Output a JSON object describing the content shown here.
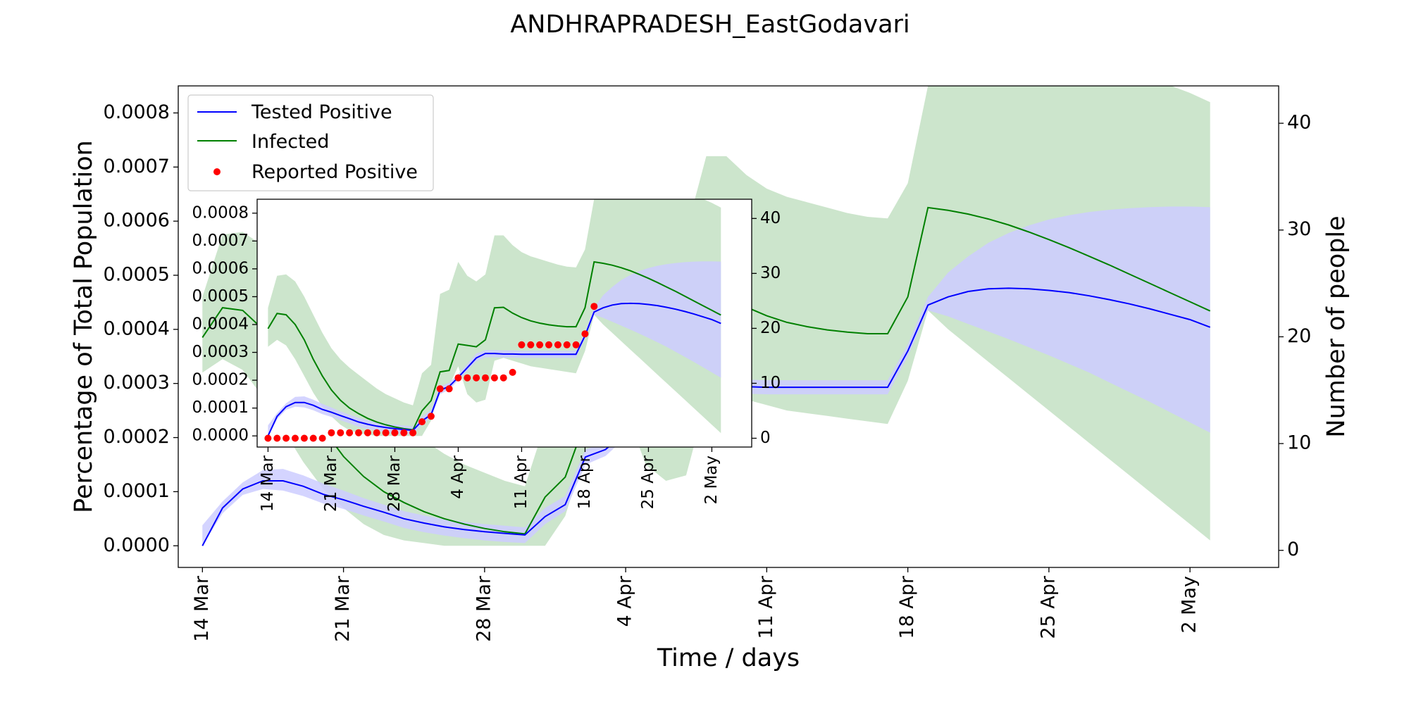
{
  "title": "ANDHRAPRADESH_EastGodavari",
  "chart_data": {
    "type": "line",
    "xlabel": "Time / days",
    "ylabel": "Percentage of Total Population",
    "y2label": "Number of people",
    "x_ticks": [
      "14 Mar",
      "21 Mar",
      "28 Mar",
      "4 Apr",
      "11 Apr",
      "18 Apr",
      "25 Apr",
      "2 May"
    ],
    "y_ticks": [
      "0.0000",
      "0.0001",
      "0.0002",
      "0.0003",
      "0.0004",
      "0.0005",
      "0.0006",
      "0.0007",
      "0.0008"
    ],
    "y2_ticks": [
      "0",
      "10",
      "20",
      "30",
      "40"
    ],
    "x_range_days": [
      -1.2,
      53.4
    ],
    "ylim": [
      -4e-05,
      0.00085
    ],
    "y2lim": [
      -1.6,
      43.5
    ],
    "inset_ylim": [
      -4e-05,
      0.00085
    ],
    "inset_y2lim": [
      -1.6,
      43.5
    ],
    "legend": {
      "position": "top-left",
      "entries": [
        "Tested Positive",
        "Infected",
        "Reported Positive"
      ]
    },
    "colors": {
      "tested": "#0000ff",
      "tested_band": "#ccccff",
      "infected": "#008000",
      "infected_band": "#cce5cc",
      "overlap": "#a3b5cc",
      "reported": "#ff0000"
    },
    "series": [
      {
        "name": "Tested Positive",
        "x": [
          0,
          1,
          2,
          3,
          4,
          5,
          6,
          7,
          8,
          9,
          10,
          11,
          12,
          13,
          14,
          15,
          16,
          17,
          18,
          19,
          20,
          21,
          22,
          23,
          24,
          25,
          26,
          27,
          28,
          29,
          30,
          31,
          32,
          33,
          34,
          35,
          36,
          37,
          38,
          39,
          40,
          41,
          42,
          43,
          44,
          45,
          46,
          47,
          48,
          49,
          50
        ],
        "y": [
          0.0,
          7e-05,
          0.000105,
          0.00012,
          0.00012,
          0.00011,
          9.5e-05,
          8.5e-05,
          7.3e-05,
          6.2e-05,
          5e-05,
          4.2e-05,
          3.5e-05,
          3e-05,
          2.6e-05,
          2.3e-05,
          2e-05,
          5.4e-05,
          7.6e-05,
          0.000164,
          0.000178,
          0.00021,
          0.000245,
          0.00028,
          0.000296,
          0.000296,
          0.000294,
          0.000294,
          0.000293,
          0.000293,
          0.000293,
          0.000293,
          0.000293,
          0.000293,
          0.000293,
          0.00036,
          0.000445,
          0.00046,
          0.00047,
          0.000475,
          0.000476,
          0.000475,
          0.000472,
          0.000468,
          0.000462,
          0.000455,
          0.000447,
          0.000438,
          0.000428,
          0.000418,
          0.000404
        ],
        "band_low": [
          0.0,
          6e-05,
          9.4e-05,
          0.000105,
          0.000102,
          9.2e-05,
          7.8e-05,
          6.8e-05,
          5.6e-05,
          4.5e-05,
          3.3e-05,
          2.5e-05,
          1.9e-05,
          1.4e-05,
          1e-05,
          7e-06,
          5e-06,
          4e-05,
          6.4e-05,
          0.00015,
          0.000166,
          0.0002,
          0.000235,
          0.000268,
          0.000282,
          0.000282,
          0.000281,
          0.000281,
          0.00028,
          0.00028,
          0.00028,
          0.00028,
          0.00028,
          0.00028,
          0.00028,
          0.00035,
          0.000435,
          0.000424,
          0.00041,
          0.000396,
          0.000382,
          0.000367,
          0.000352,
          0.000336,
          0.00032,
          0.000302,
          0.000284,
          0.000266,
          0.000247,
          0.000228,
          0.000209
        ],
        "band_high": [
          3.8e-05,
          8.2e-05,
          0.000117,
          0.00014,
          0.000142,
          0.00013,
          0.000115,
          0.000102,
          8.8e-05,
          7.6e-05,
          6.4e-05,
          5.6e-05,
          4.9e-05,
          4.4e-05,
          4e-05,
          3.7e-05,
          3.4e-05,
          7e-05,
          9.2e-05,
          0.000178,
          0.000191,
          0.000222,
          0.000258,
          0.000296,
          0.000308,
          0.000308,
          0.000307,
          0.000307,
          0.000306,
          0.000306,
          0.000306,
          0.000306,
          0.000306,
          0.000306,
          0.000306,
          0.000372,
          0.00046,
          0.000505,
          0.000535,
          0.00056,
          0.000578,
          0.000592,
          0.000603,
          0.000611,
          0.000617,
          0.000621,
          0.000624,
          0.000626,
          0.000627,
          0.000627,
          0.000626
        ]
      },
      {
        "name": "Infected",
        "x": [
          0,
          1,
          2,
          3,
          4,
          5,
          6,
          7,
          8,
          9,
          10,
          11,
          12,
          13,
          14,
          15,
          16,
          17,
          18,
          19,
          20,
          21,
          22,
          23,
          24,
          25,
          26,
          27,
          28,
          29,
          30,
          31,
          32,
          33,
          34,
          35,
          36,
          37,
          38,
          39,
          40,
          41,
          42,
          43,
          44,
          45,
          46,
          47,
          48,
          49,
          50
        ],
        "y": [
          0.000385,
          0.00044,
          0.000435,
          0.0004,
          0.000345,
          0.000275,
          0.000215,
          0.000165,
          0.000128,
          0.0001,
          8e-05,
          6.3e-05,
          5e-05,
          4e-05,
          3.2e-05,
          2.6e-05,
          2.2e-05,
          9e-05,
          0.000127,
          0.00023,
          0.000235,
          0.00033,
          0.000325,
          0.00032,
          0.000345,
          0.00046,
          0.000462,
          0.000441,
          0.000425,
          0.000413,
          0.000405,
          0.000399,
          0.000395,
          0.000392,
          0.000392,
          0.00046,
          0.000625,
          0.00062,
          0.000613,
          0.000604,
          0.000593,
          0.00058,
          0.000566,
          0.000551,
          0.000535,
          0.000519,
          0.000502,
          0.000485,
          0.000468,
          0.000451,
          0.000434
        ],
        "band_low": [
          0.00032,
          0.000345,
          0.000325,
          0.000275,
          0.000215,
          0.000155,
          0.000105,
          7e-05,
          4e-05,
          2e-05,
          1e-05,
          5e-06,
          0.0,
          0.0,
          0.0,
          0.0,
          0.0,
          0.0,
          5.5e-05,
          0.000175,
          0.00018,
          0.00025,
          0.00015,
          0.00012,
          0.00013,
          0.00027,
          0.00028,
          0.00027,
          0.00026,
          0.00025,
          0.000245,
          0.00024,
          0.000235,
          0.00023,
          0.000225,
          0.000305,
          0.000435,
          0.0004,
          0.00037,
          0.00034,
          0.00031,
          0.00028,
          0.00025,
          0.00022,
          0.00019,
          0.00016,
          0.00013,
          0.0001,
          7e-05,
          4e-05,
          1e-05
        ],
        "band_high": [
          0.00046,
          0.000575,
          0.00058,
          0.000555,
          0.0005,
          0.000435,
          0.00037,
          0.000315,
          0.000275,
          0.000245,
          0.00022,
          0.000195,
          0.00017,
          0.00015,
          0.000135,
          0.00012,
          0.00011,
          0.000225,
          0.000255,
          0.00051,
          0.000525,
          0.000625,
          0.000575,
          0.000555,
          0.00058,
          0.00072,
          0.00072,
          0.000685,
          0.00066,
          0.000645,
          0.000635,
          0.000625,
          0.000615,
          0.000608,
          0.000605,
          0.00067,
          0.00085,
          0.000868,
          0.00088,
          0.000887,
          0.000891,
          0.000893,
          0.000893,
          0.000891,
          0.000887,
          0.000881,
          0.000873,
          0.000863,
          0.000851,
          0.000837,
          0.00082
        ]
      },
      {
        "name": "Reported Positive",
        "type": "scatter",
        "x": [
          0,
          1,
          2,
          3,
          4,
          5,
          6,
          7,
          8,
          9,
          10,
          11,
          12,
          13,
          14,
          15,
          16,
          17,
          18,
          19,
          20,
          21,
          22,
          23,
          24,
          25,
          26,
          27,
          28,
          29,
          30,
          31,
          32,
          33,
          34,
          35,
          36
        ],
        "y": [
          0,
          0,
          0,
          0,
          0,
          0,
          0,
          1,
          1,
          1,
          1,
          1,
          1,
          1,
          1,
          1,
          1,
          3,
          4,
          9,
          9,
          11,
          11,
          11,
          11,
          11,
          11,
          12,
          17,
          17,
          17,
          17,
          17,
          17,
          17,
          19,
          24
        ]
      }
    ]
  }
}
